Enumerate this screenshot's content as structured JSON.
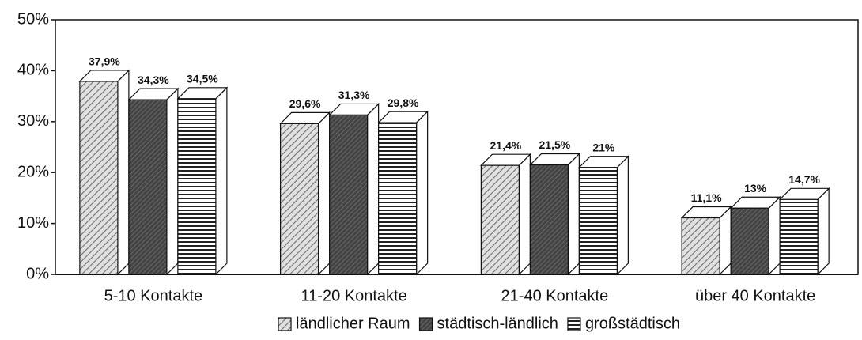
{
  "chart_data": {
    "type": "bar",
    "categories": [
      "5-10 Kontakte",
      "11-20 Kontakte",
      "21-40 Kontakte",
      "über 40 Kontakte"
    ],
    "series": [
      {
        "name": "ländlicher Raum",
        "color": "#c8c8c8",
        "values": [
          37.9,
          29.6,
          21.4,
          11.1
        ],
        "value_labels": [
          "37,9%",
          "29,6%",
          "21,4%",
          "11,1%"
        ]
      },
      {
        "name": "städtisch-ländlich",
        "color": "#555555",
        "values": [
          34.3,
          31.3,
          21.5,
          13
        ],
        "value_labels": [
          "34,3%",
          "31,3%",
          "21,5%",
          "13%"
        ]
      },
      {
        "name": "großstädtisch",
        "color": "#ffffff",
        "values": [
          34.5,
          29.8,
          21,
          14.7
        ],
        "value_labels": [
          "34,5%",
          "29,8%",
          "21%",
          "14,7%"
        ]
      }
    ],
    "ylim": [
      0,
      50
    ],
    "yticks": [
      {
        "value": 0,
        "label": "0%"
      },
      {
        "value": 10,
        "label": "10%"
      },
      {
        "value": 20,
        "label": "20%"
      },
      {
        "value": 30,
        "label": "30%"
      },
      {
        "value": 40,
        "label": "40%"
      },
      {
        "value": 50,
        "label": "50%"
      }
    ],
    "legend": "bottom"
  }
}
